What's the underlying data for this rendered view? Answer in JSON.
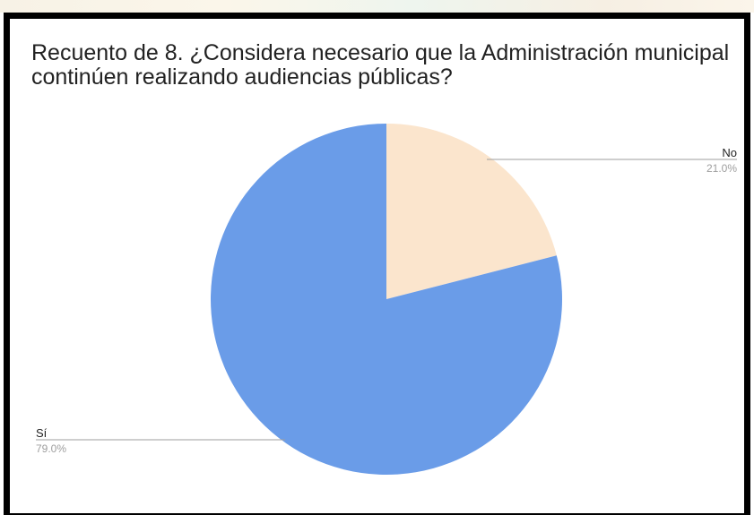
{
  "chart_data": {
    "type": "pie",
    "title": "Recuento de 8.  ¿Considera necesario que la Administración municipal continúen realizando audiencias públicas?",
    "slices": [
      {
        "label": "No",
        "percent_label": "21.0%",
        "value": 21.0,
        "color": "#fbe5cd"
      },
      {
        "label": "Sí",
        "percent_label": "79.0%",
        "value": 79.0,
        "color": "#6a9ce8"
      }
    ],
    "legend": "none",
    "start_angle_deg": 0
  }
}
